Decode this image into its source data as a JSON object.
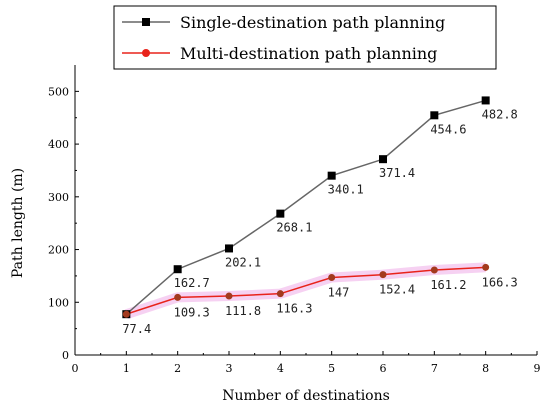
{
  "chart_data": {
    "type": "line",
    "xlabel": "Number of destinations",
    "ylabel": "Path length (m)",
    "xlim": [
      0,
      9
    ],
    "ylim": [
      0,
      550
    ],
    "x_ticks": [
      "0",
      "1",
      "2",
      "3",
      "4",
      "5",
      "6",
      "7",
      "8",
      "9"
    ],
    "y_ticks": [
      "0",
      "100",
      "200",
      "300",
      "400",
      "500"
    ],
    "grid": false,
    "legend_position": "top",
    "x": [
      1,
      2,
      3,
      4,
      5,
      6,
      7,
      8
    ],
    "series": [
      {
        "name": "Single-destination path planning",
        "color": "#666666",
        "marker": "square",
        "marker_color": "#000000",
        "values": [
          77.4,
          162.7,
          202.1,
          268.1,
          340.1,
          371.4,
          454.6,
          482.8
        ],
        "labels": [
          "",
          "162.7",
          "202.1",
          "268.1",
          "340.1",
          "371.4",
          "454.6",
          "482.8"
        ]
      },
      {
        "name": "Multi-destination path planning",
        "color": "#e8231b",
        "marker": "circle",
        "marker_color": "#e8231b",
        "values": [
          77.4,
          109.3,
          111.8,
          116.3,
          147,
          152.4,
          161.2,
          166.3
        ],
        "labels": [
          "77.4",
          "109.3",
          "111.8",
          "116.3",
          "147",
          "152.4",
          "161.2",
          "166.3"
        ]
      }
    ]
  }
}
